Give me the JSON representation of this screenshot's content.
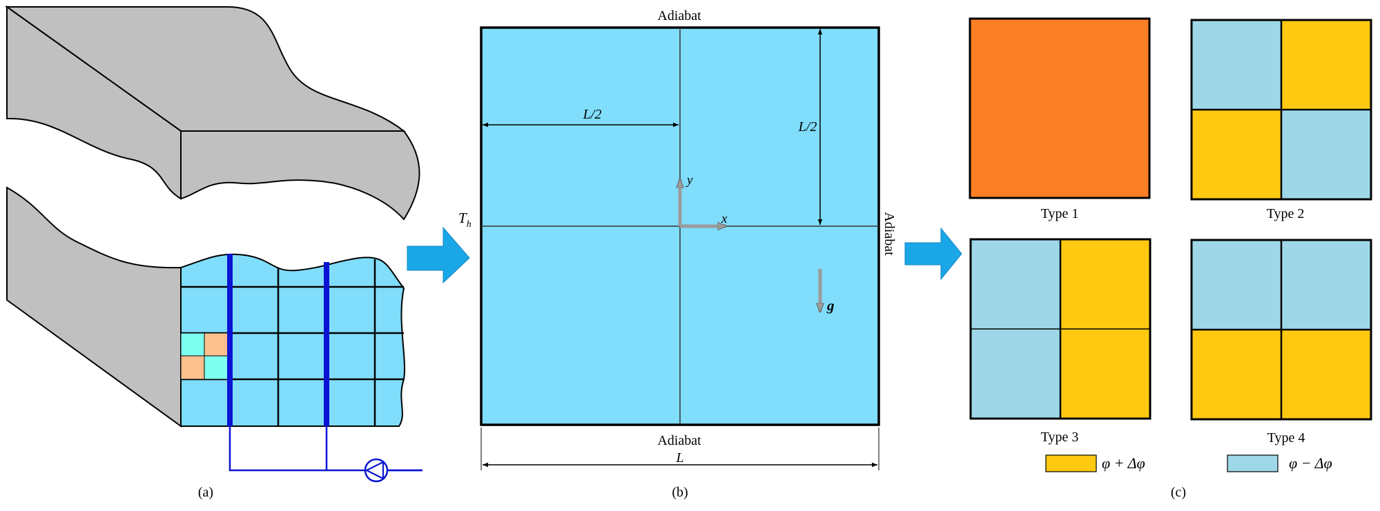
{
  "panel_a": {
    "label": "(a)"
  },
  "panel_b": {
    "label": "(b)",
    "top_label": "Adiabat",
    "bottom_label": "Adiabat",
    "right_label": "Adiabat",
    "left_label_main": "T",
    "left_label_sub": "h",
    "half_width_label": "L/2",
    "half_height_label": "L/2",
    "width_label": "L",
    "x_axis_label": "x",
    "y_axis_label": "y",
    "gravity_label": "g"
  },
  "panel_c": {
    "label": "(c)",
    "types": [
      "Type 1",
      "Type 2",
      "Type 3",
      "Type 4"
    ],
    "legend_plus": "φ + Δφ",
    "legend_minus": "φ − Δφ"
  },
  "colors": {
    "fluid": "#80DDFB",
    "gray_block": "#C0C0C0",
    "pipe_blue": "#0A14D2",
    "orange_type1": "#FD7F25",
    "yellow": "#FFC912",
    "light_blue": "#9ED8E8",
    "cell_cyan": "#7FFFF0",
    "cell_peach": "#FBC08E",
    "arrow_blue": "#1AA7E8",
    "axis_gray": "#9B9B9B"
  }
}
